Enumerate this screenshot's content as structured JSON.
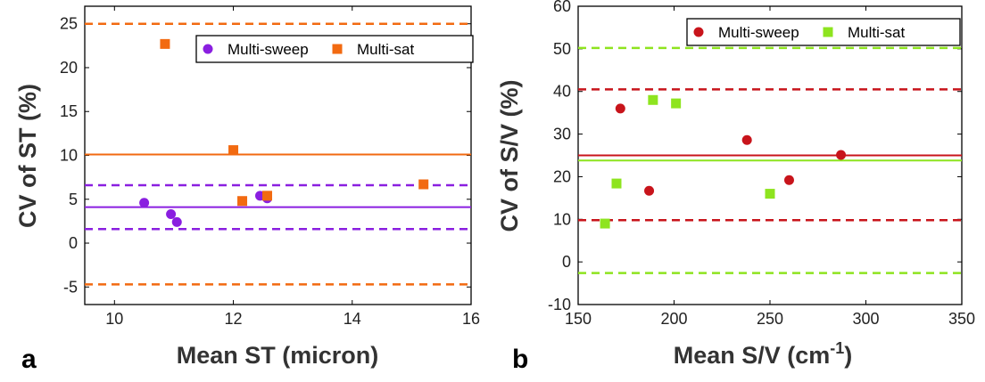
{
  "chart_data": [
    {
      "type": "scatter",
      "panel_label": "a",
      "xlabel": "Mean ST (micron)",
      "ylabel": "CV of ST (%)",
      "xlim": [
        9.5,
        16
      ],
      "ylim": [
        -7,
        27
      ],
      "xticks": [
        10,
        12,
        14,
        16
      ],
      "yticks": [
        -5,
        0,
        5,
        10,
        15,
        20,
        25
      ],
      "x_tick_labels": [
        "10",
        "12",
        "14",
        "16"
      ],
      "y_tick_labels": [
        "-5",
        "0",
        "5",
        "10",
        "15",
        "20",
        "25"
      ],
      "legend_position": "top-right",
      "series": [
        {
          "name": "Multi-sweep",
          "marker": "circle",
          "color": "#8a1fe0",
          "points": [
            [
              10.5,
              4.6
            ],
            [
              10.95,
              3.3
            ],
            [
              11.05,
              2.4
            ],
            [
              12.45,
              5.4
            ],
            [
              12.57,
              5.1
            ]
          ],
          "mean": 4.1,
          "limits": [
            1.6,
            6.6
          ]
        },
        {
          "name": "Multi-sat",
          "marker": "square",
          "color": "#f26a11",
          "points": [
            [
              10.85,
              22.7
            ],
            [
              12.0,
              10.6
            ],
            [
              12.15,
              4.8
            ],
            [
              12.57,
              5.4
            ],
            [
              15.2,
              6.7
            ]
          ],
          "mean": 10.1,
          "limits": [
            -4.7,
            25.0
          ]
        }
      ]
    },
    {
      "type": "scatter",
      "panel_label": "b",
      "xlabel": "Mean S/V (cm",
      "xlabel_superscript": "-1",
      "xlabel_suffix": ")",
      "ylabel": "CV of S/V (%)",
      "xlim": [
        150,
        350
      ],
      "ylim": [
        -10,
        60
      ],
      "xticks": [
        150,
        200,
        250,
        300,
        350
      ],
      "yticks": [
        -10,
        0,
        10,
        20,
        30,
        40,
        50,
        60
      ],
      "x_tick_labels": [
        "150",
        "200",
        "250",
        "300",
        "350"
      ],
      "y_tick_labels": [
        "-10",
        "0",
        "10",
        "20",
        "30",
        "40",
        "50",
        "60"
      ],
      "legend_position": "top-right",
      "series": [
        {
          "name": "Multi-sweep",
          "marker": "circle",
          "color": "#c8141b",
          "points": [
            [
              172,
              36.0
            ],
            [
              187,
              16.7
            ],
            [
              238,
              28.6
            ],
            [
              260,
              19.2
            ],
            [
              287,
              25.1
            ]
          ],
          "mean": 25.0,
          "limits": [
            9.8,
            40.5
          ]
        },
        {
          "name": "Multi-sat",
          "marker": "square",
          "color": "#8ee41f",
          "points": [
            [
              164,
              9.0
            ],
            [
              170,
              18.4
            ],
            [
              189,
              38.0
            ],
            [
              201,
              37.2
            ],
            [
              250,
              16.0
            ]
          ],
          "mean": 23.8,
          "limits": [
            -2.6,
            50.2
          ]
        }
      ]
    }
  ]
}
